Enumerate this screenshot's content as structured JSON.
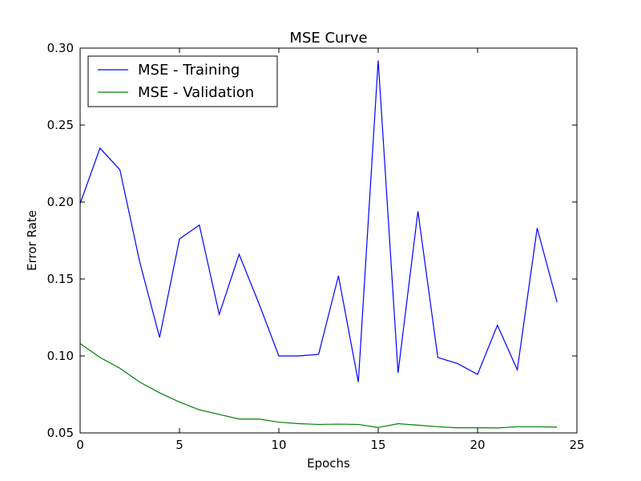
{
  "chart_data": {
    "type": "line",
    "title": "MSE Curve",
    "xlabel": "Epochs",
    "ylabel": "Error Rate",
    "xlim": [
      0,
      25
    ],
    "ylim": [
      0.05,
      0.3
    ],
    "xticks": [
      0,
      5,
      10,
      15,
      20,
      25
    ],
    "xtick_labels": [
      "0",
      "5",
      "10",
      "15",
      "20",
      "25"
    ],
    "yticks": [
      0.05,
      0.1,
      0.15,
      0.2,
      0.25,
      0.3
    ],
    "ytick_labels": [
      "0.05",
      "0.10",
      "0.15",
      "0.20",
      "0.25",
      "0.30"
    ],
    "grid": false,
    "legend_position": "top-left",
    "x": [
      0,
      1,
      2,
      3,
      4,
      5,
      6,
      7,
      8,
      9,
      10,
      11,
      12,
      13,
      14,
      15,
      16,
      17,
      18,
      19,
      20,
      21,
      22,
      23,
      24
    ],
    "series": [
      {
        "name": "MSE - Training",
        "color": "#0000ff",
        "values": [
          0.199,
          0.235,
          0.221,
          0.161,
          0.112,
          0.176,
          0.185,
          0.127,
          0.166,
          0.134,
          0.1,
          0.1,
          0.101,
          0.152,
          0.083,
          0.292,
          0.089,
          0.194,
          0.099,
          0.095,
          0.088,
          0.12,
          0.091,
          0.183,
          0.135
        ]
      },
      {
        "name": "MSE - Validation",
        "color": "#008000",
        "values": [
          0.108,
          0.099,
          0.092,
          0.083,
          0.076,
          0.07,
          0.065,
          0.062,
          0.059,
          0.059,
          0.057,
          0.056,
          0.0555,
          0.0557,
          0.0555,
          0.0535,
          0.056,
          0.055,
          0.054,
          0.0533,
          0.0533,
          0.0532,
          0.054,
          0.054,
          0.0537
        ]
      }
    ]
  }
}
